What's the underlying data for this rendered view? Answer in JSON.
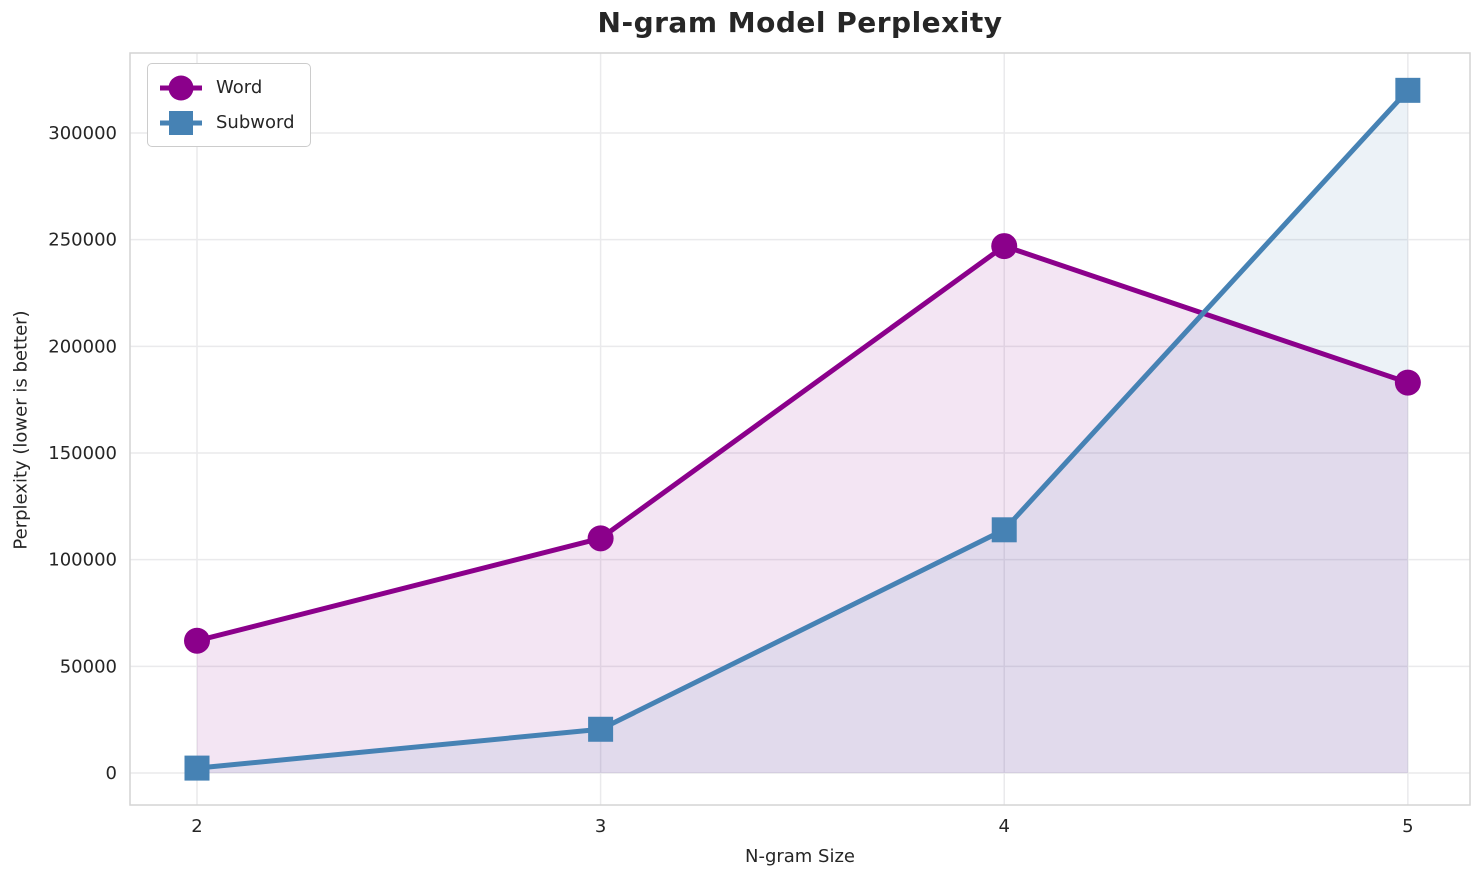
{
  "chart_data": {
    "type": "line",
    "title": "N-gram Model Perplexity",
    "xlabel": "N-gram Size",
    "ylabel": "Perplexity (lower is better)",
    "x": [
      2,
      3,
      4,
      5
    ],
    "x_tick_labels": [
      "2",
      "3",
      "4",
      "5"
    ],
    "y_ticks": [
      0,
      50000,
      100000,
      150000,
      200000,
      250000,
      300000
    ],
    "y_tick_labels": [
      "0",
      "50000",
      "100000",
      "150000",
      "200000",
      "250000",
      "300000"
    ],
    "xlim": [
      1.834,
      5.154
    ],
    "ylim": [
      -15000,
      337500
    ],
    "grid": true,
    "legend_position": "upper left",
    "fill_baseline": 0,
    "series": [
      {
        "name": "Word",
        "color": "#8B008B",
        "fill_color": "#8B008B",
        "fill_opacity": 0.1,
        "marker": "circle",
        "values": [
          62000,
          110000,
          247000,
          183000
        ]
      },
      {
        "name": "Subword",
        "color": "#4682B4",
        "fill_color": "#4682B4",
        "fill_opacity": 0.1,
        "marker": "square",
        "values": [
          2300,
          20500,
          114000,
          320000
        ]
      }
    ],
    "style": {
      "grid_color": "#eaeaec",
      "spine_color": "#d4d4d4",
      "text_color": "#262626",
      "background": "#ffffff",
      "line_width": 5
    }
  }
}
